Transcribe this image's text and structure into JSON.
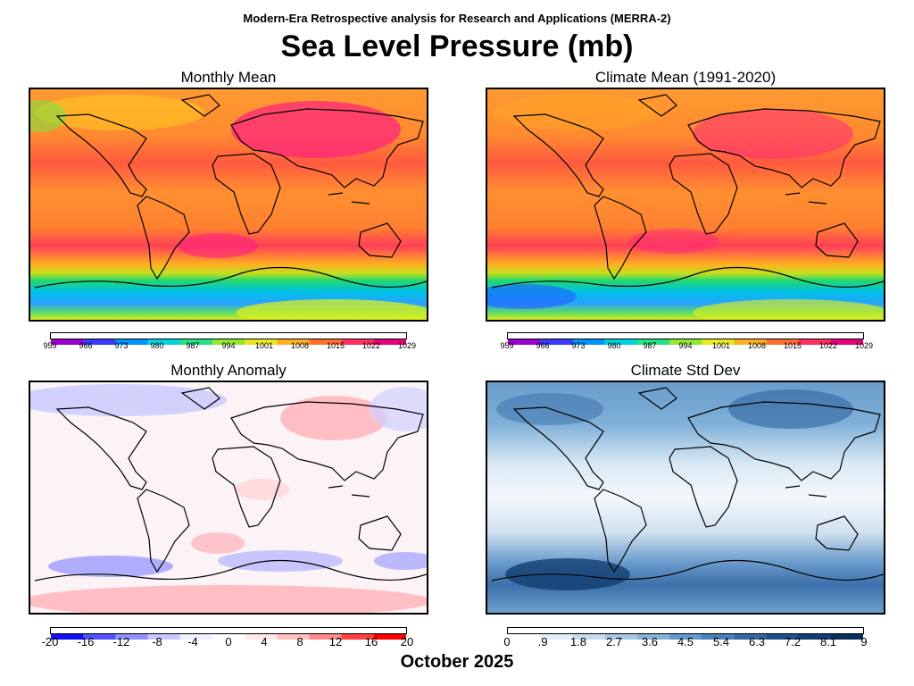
{
  "header": {
    "subtitle": "Modern-Era Retrospective analysis for Research and Applications (MERRA-2)",
    "title": "Sea Level Pressure (mb)"
  },
  "panels": [
    {
      "title": "Monthly Mean",
      "scale": "pressure"
    },
    {
      "title": "Climate Mean (1991-2020)",
      "scale": "pressure"
    },
    {
      "title": "Monthly Anomaly",
      "scale": "anomaly"
    },
    {
      "title": "Climate Std Dev",
      "scale": "stddev"
    }
  ],
  "colorbars": {
    "pressure": {
      "ticks": [
        "959",
        "966",
        "973",
        "980",
        "987",
        "994",
        "1001",
        "1008",
        "1015",
        "1022",
        "1029"
      ]
    },
    "anomaly": {
      "ticks": [
        "-20",
        "-16",
        "-12",
        "-8",
        "-4",
        "0",
        "4",
        "8",
        "12",
        "16",
        "20"
      ]
    },
    "stddev": {
      "ticks": [
        "0",
        ".9",
        "1.8",
        "2.7",
        "3.6",
        "4.5",
        "5.4",
        "6.3",
        "7.2",
        "8.1",
        "9"
      ]
    }
  },
  "colors": {
    "pressure_scale": [
      "#9a00d0",
      "#3a3aff",
      "#0094ff",
      "#00d4e0",
      "#28e088",
      "#90e830",
      "#e8e820",
      "#ffb020",
      "#ff7030",
      "#ff3060",
      "#e8007a"
    ],
    "anomaly_scale": [
      "#1010ff",
      "#5050ff",
      "#9090ff",
      "#c8c8ff",
      "#f0f0ff",
      "#ffffff",
      "#ffe8e8",
      "#ffc0c0",
      "#ff8888",
      "#ff4040",
      "#ff0000"
    ],
    "stddev_scale": [
      "#ffffff",
      "#e4eef8",
      "#c8dcee",
      "#a8c8e4",
      "#86b2d8",
      "#6498c8",
      "#4a80b8",
      "#3468a4",
      "#20508c",
      "#123c74",
      "#08305a"
    ]
  },
  "footer": {
    "date": "October 2025"
  }
}
